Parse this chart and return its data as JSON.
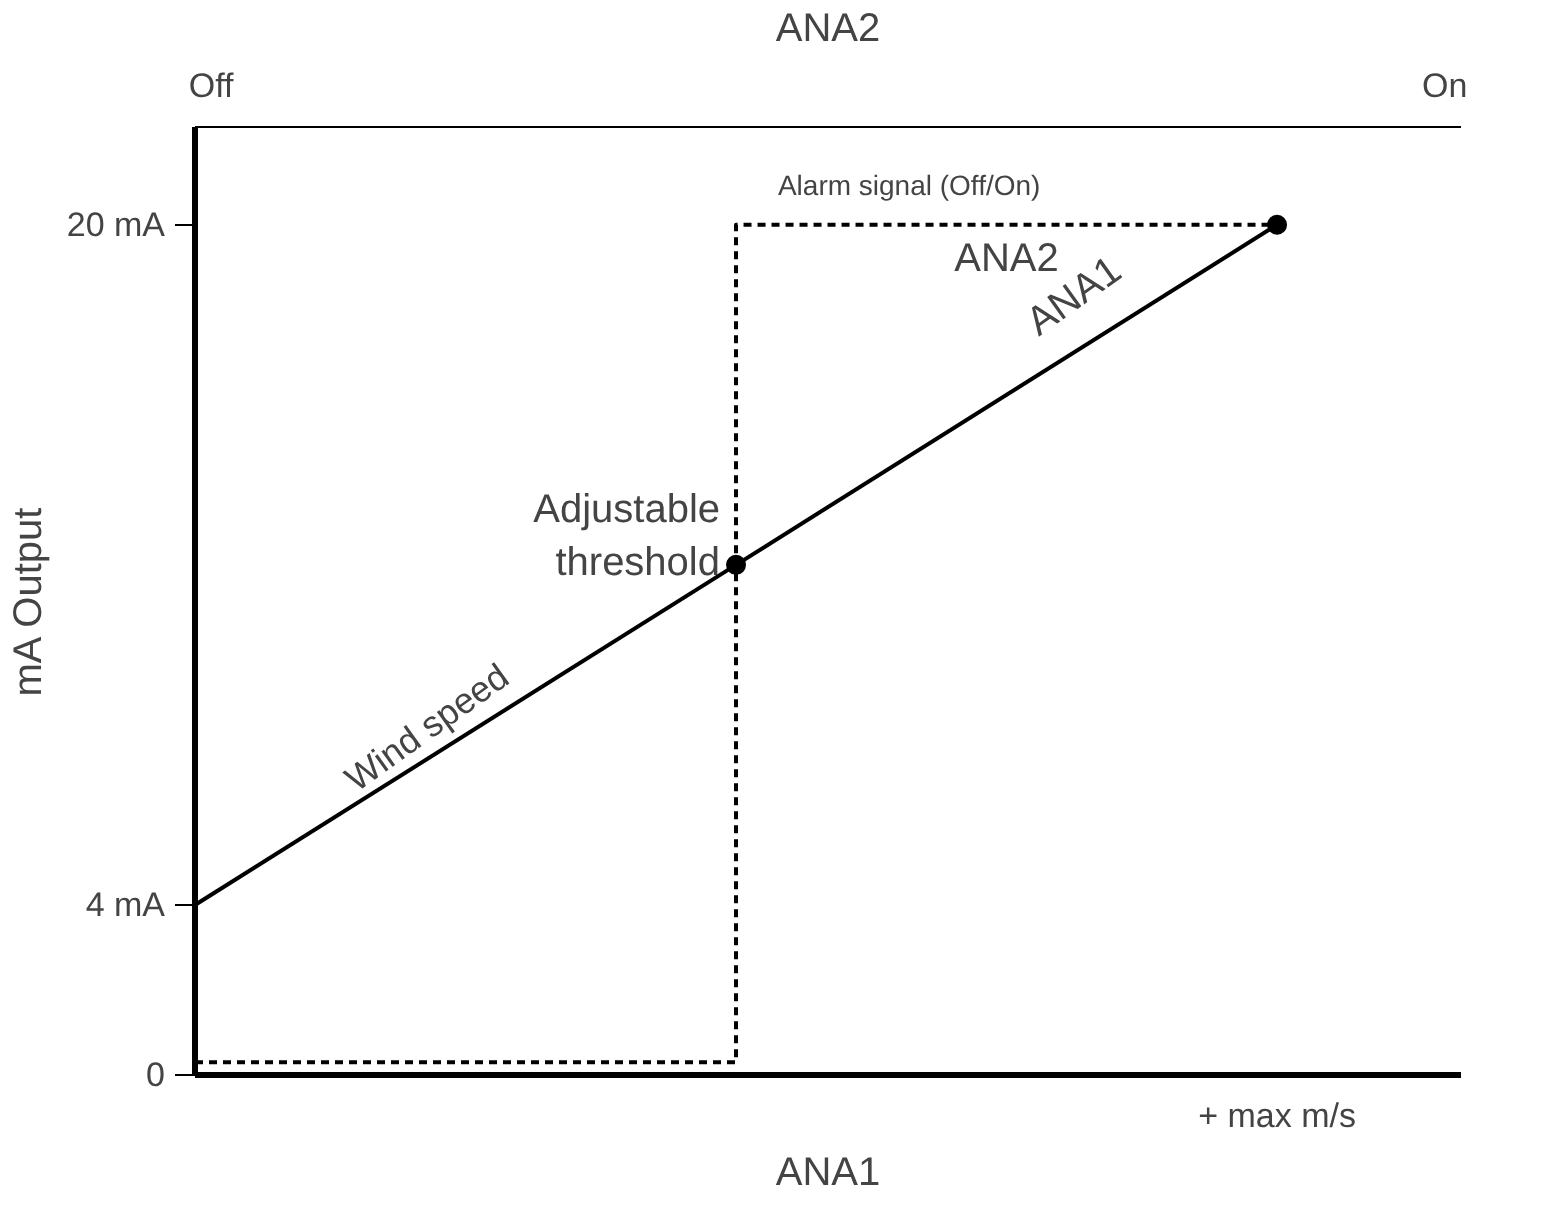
{
  "chart_data": {
    "type": "line",
    "xlabel": "ANA1",
    "ylabel": "mA Output",
    "x2label": "ANA2",
    "categories": [
      null,
      null,
      null
    ],
    "ylim": [
      0,
      22.3
    ],
    "yticks": [
      {
        "value": 0,
        "label": "0"
      },
      {
        "value": 4,
        "label": "4 mA"
      },
      {
        "value": 20,
        "label": "20 mA"
      }
    ],
    "grid": false,
    "legend": false,
    "series": [
      {
        "name": "ANA1",
        "color": "#000000",
        "values": [
          4,
          12,
          20
        ],
        "line_style": "solid"
      },
      {
        "name": "ANA2",
        "type": "step",
        "color": "#000000",
        "values": [
          0.3,
          20,
          20
        ],
        "line_style": "dashed"
      },
      {
        "type": "scatter",
        "color": "#000000",
        "values": [
          null,
          12,
          20
        ],
        "marker": "circle"
      }
    ],
    "annotations": [
      "Adjustable threshold",
      "Wind speed",
      "Alarm signal (Off/On)",
      "+ max m/s",
      "Off",
      "On"
    ]
  }
}
